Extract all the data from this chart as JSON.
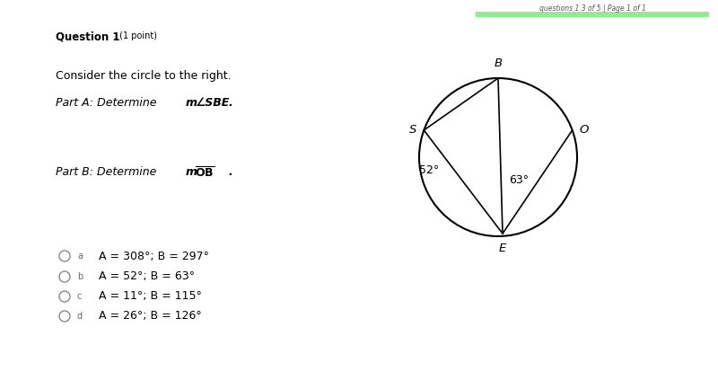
{
  "bg_color": "#ffffff",
  "text_color": "#000000",
  "header_text": "questions 1 3 of 5 | Page 1 of 1",
  "header_bar_color": "#90EE90",
  "circle_lines": [
    [
      "B",
      "S"
    ],
    [
      "B",
      "E"
    ],
    [
      "S",
      "E"
    ],
    [
      "O",
      "E"
    ]
  ],
  "angle_63_label": "63°",
  "angle_52_label": "52°",
  "choices_a": "A = 308°; B = 297°",
  "choices_b": "A = 52°; B = 63°",
  "choices_c": "A = 11°; B = 115°",
  "choices_d": "A = 26°; B = 126°"
}
